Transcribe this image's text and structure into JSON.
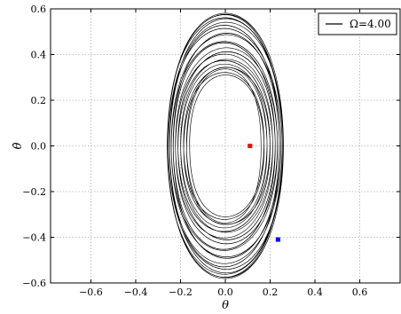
{
  "chart_data": {
    "type": "line",
    "title": "",
    "xlabel": "θ",
    "ylabel": "θ̇",
    "xlim": [
      -0.78,
      0.78
    ],
    "ylim": [
      -0.6,
      0.6
    ],
    "xticks": [
      "−0.6",
      "−0.4",
      "−0.2",
      "0.0",
      "0.2",
      "0.4",
      "0.6"
    ],
    "xtick_values": [
      -0.6,
      -0.4,
      -0.2,
      0.0,
      0.2,
      0.4,
      0.6
    ],
    "yticks": [
      "−0.6",
      "−0.4",
      "−0.2",
      "0.0",
      "0.2",
      "0.4",
      "0.6"
    ],
    "ytick_values": [
      -0.6,
      -0.4,
      -0.2,
      0.0,
      0.2,
      0.4,
      0.6
    ],
    "grid": true,
    "legend": {
      "position": "top-right",
      "entries": [
        "Ω=4.00"
      ]
    },
    "series": [
      {
        "name": "Ω=4.00",
        "color": "#000000",
        "description_points": {
          "envelope_theta_range": [
            -0.27,
            0.27
          ],
          "envelope_thetadot_range": [
            -0.6,
            0.6
          ]
        }
      }
    ],
    "markers": [
      {
        "x": 0.11,
        "y": 0.0,
        "color": "#ff0000"
      },
      {
        "x": 0.235,
        "y": -0.41,
        "color": "#0000ff"
      }
    ]
  }
}
